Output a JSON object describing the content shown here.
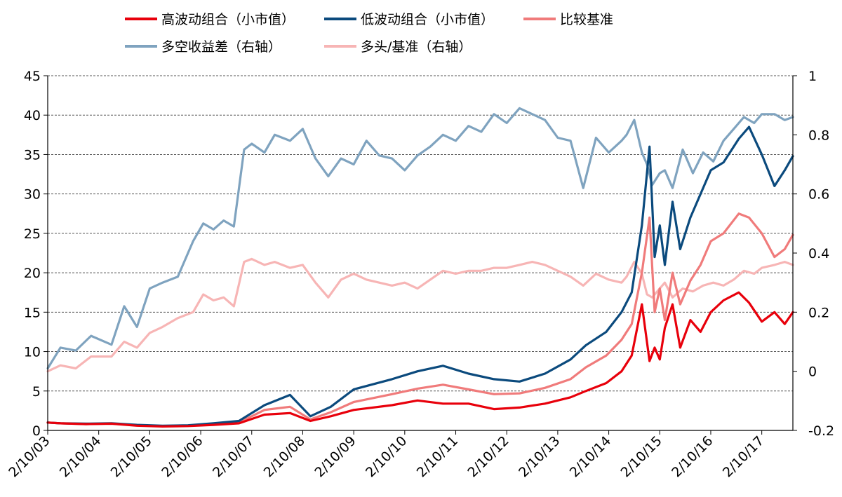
{
  "chart_data": {
    "type": "line",
    "title": "",
    "xlabel": "",
    "ylabel": "",
    "x_ticks": [
      "2/10/03",
      "2/10/04",
      "2/10/05",
      "2/10/06",
      "2/10/07",
      "2/10/08",
      "2/10/09",
      "2/10/10",
      "2/10/11",
      "2/10/12",
      "2/10/13",
      "2/10/14",
      "2/10/15",
      "2/10/16",
      "2/10/17"
    ],
    "x_range": [
      2003.75,
      2018.36
    ],
    "ylim_left": [
      0,
      45
    ],
    "ylim_right": [
      -0.2,
      1
    ],
    "yticks_left": [
      "0",
      "5",
      "10",
      "15",
      "20",
      "25",
      "30",
      "35",
      "40",
      "45"
    ],
    "yticks_right": [
      "-0.2",
      "0",
      "0.2",
      "0.4",
      "0.6",
      "0.8",
      "1"
    ],
    "grid": "horizontal dashed",
    "legend_position": "top",
    "legend": [
      {
        "label": "高波动组合（小市值）",
        "color": "#e8000b"
      },
      {
        "label": "低波动组合（小市值）",
        "color": "#0b4a7d"
      },
      {
        "label": "比较基准",
        "color": "#f07b7b"
      },
      {
        "label": "多空收益差（右轴）",
        "color": "#7fa3bf"
      },
      {
        "label": "多头/基准（右轴）",
        "color": "#f7b5b5"
      }
    ],
    "series": [
      {
        "name": "高波动组合（小市值）",
        "axis": "left",
        "color": "#e8000b",
        "x": [
          2003.75,
          2004.0,
          2004.5,
          2005.0,
          2005.5,
          2006.0,
          2006.5,
          2007.0,
          2007.5,
          2008.0,
          2008.5,
          2008.9,
          2009.3,
          2009.75,
          2010.5,
          2011.0,
          2011.5,
          2012.0,
          2012.5,
          2013.0,
          2013.5,
          2014.0,
          2014.3,
          2014.7,
          2015.0,
          2015.2,
          2015.4,
          2015.55,
          2015.65,
          2015.75,
          2015.85,
          2016.0,
          2016.15,
          2016.35,
          2016.55,
          2016.75,
          2017.0,
          2017.3,
          2017.5,
          2017.75,
          2018.0,
          2018.2,
          2018.36
        ],
        "values": [
          1.0,
          0.9,
          0.8,
          0.85,
          0.6,
          0.5,
          0.55,
          0.7,
          0.9,
          2.0,
          2.2,
          1.2,
          1.8,
          2.6,
          3.2,
          3.8,
          3.4,
          3.4,
          2.7,
          2.9,
          3.4,
          4.2,
          5.0,
          6.0,
          7.5,
          9.5,
          16,
          8.8,
          10.5,
          9.0,
          13,
          16,
          10.5,
          14,
          12.5,
          15,
          16.5,
          17.5,
          16.2,
          13.8,
          15.0,
          13.5,
          15.0
        ]
      },
      {
        "name": "低波动组合（小市值）",
        "axis": "left",
        "color": "#0b4a7d",
        "x": [
          2003.75,
          2004.0,
          2004.5,
          2005.0,
          2005.5,
          2006.0,
          2006.5,
          2007.0,
          2007.5,
          2008.0,
          2008.5,
          2008.9,
          2009.3,
          2009.75,
          2010.5,
          2011.0,
          2011.5,
          2012.0,
          2012.5,
          2013.0,
          2013.5,
          2014.0,
          2014.3,
          2014.7,
          2015.0,
          2015.2,
          2015.4,
          2015.55,
          2015.65,
          2015.75,
          2015.85,
          2016.0,
          2016.15,
          2016.35,
          2016.55,
          2016.75,
          2017.0,
          2017.3,
          2017.5,
          2017.75,
          2018.0,
          2018.2,
          2018.36
        ],
        "values": [
          1.0,
          0.9,
          0.85,
          0.9,
          0.7,
          0.6,
          0.65,
          0.9,
          1.2,
          3.2,
          4.5,
          1.8,
          3.0,
          5.2,
          6.5,
          7.5,
          8.2,
          7.2,
          6.5,
          6.2,
          7.2,
          9.0,
          10.8,
          12.5,
          15.0,
          17.5,
          26,
          36,
          22,
          26,
          21,
          29,
          23,
          27,
          30,
          33,
          34,
          37,
          38.5,
          35,
          31,
          33,
          34.8
        ]
      },
      {
        "name": "比较基准",
        "axis": "left",
        "color": "#f07b7b",
        "x": [
          2003.75,
          2004.0,
          2004.5,
          2005.0,
          2005.5,
          2006.0,
          2006.5,
          2007.0,
          2007.5,
          2008.0,
          2008.5,
          2008.9,
          2009.3,
          2009.75,
          2010.5,
          2011.0,
          2011.5,
          2012.0,
          2012.5,
          2013.0,
          2013.5,
          2014.0,
          2014.3,
          2014.7,
          2015.0,
          2015.2,
          2015.4,
          2015.55,
          2015.65,
          2015.75,
          2015.85,
          2016.0,
          2016.15,
          2016.35,
          2016.55,
          2016.75,
          2017.0,
          2017.3,
          2017.5,
          2017.75,
          2018.0,
          2018.2,
          2018.36
        ],
        "values": [
          1.0,
          0.9,
          0.8,
          0.85,
          0.65,
          0.55,
          0.6,
          0.8,
          1.0,
          2.6,
          3.0,
          1.4,
          2.3,
          3.6,
          4.6,
          5.3,
          5.8,
          5.2,
          4.6,
          4.7,
          5.4,
          6.5,
          8.0,
          9.5,
          11.5,
          13.5,
          20,
          27,
          15,
          18,
          14,
          20,
          16,
          19,
          21,
          24,
          25,
          27.5,
          27,
          25,
          22,
          23,
          24.8
        ]
      },
      {
        "name": "多空收益差（右轴）",
        "axis": "right",
        "color": "#7fa3bf",
        "x": [
          2003.75,
          2004.0,
          2004.3,
          2004.6,
          2005.0,
          2005.25,
          2005.5,
          2005.75,
          2006.0,
          2006.3,
          2006.6,
          2006.8,
          2007.0,
          2007.2,
          2007.4,
          2007.6,
          2007.75,
          2008.0,
          2008.2,
          2008.5,
          2008.75,
          2009.0,
          2009.25,
          2009.5,
          2009.75,
          2010.0,
          2010.25,
          2010.5,
          2010.75,
          2011.0,
          2011.25,
          2011.5,
          2011.75,
          2012.0,
          2012.25,
          2012.5,
          2012.75,
          2013.0,
          2013.25,
          2013.5,
          2013.75,
          2014.0,
          2014.25,
          2014.5,
          2014.75,
          2015.0,
          2015.1,
          2015.25,
          2015.4,
          2015.5,
          2015.6,
          2015.75,
          2015.85,
          2016.0,
          2016.2,
          2016.4,
          2016.6,
          2016.8,
          2017.0,
          2017.2,
          2017.4,
          2017.6,
          2017.75,
          2018.0,
          2018.2,
          2018.36
        ],
        "values": [
          0.01,
          0.08,
          0.07,
          0.12,
          0.09,
          0.22,
          0.15,
          0.28,
          0.3,
          0.32,
          0.44,
          0.5,
          0.48,
          0.51,
          0.49,
          0.75,
          0.77,
          0.74,
          0.8,
          0.78,
          0.82,
          0.72,
          0.66,
          0.72,
          0.7,
          0.78,
          0.73,
          0.72,
          0.68,
          0.73,
          0.76,
          0.8,
          0.78,
          0.83,
          0.81,
          0.87,
          0.84,
          0.89,
          0.87,
          0.85,
          0.79,
          0.78,
          0.62,
          0.79,
          0.74,
          0.78,
          0.8,
          0.85,
          0.74,
          0.7,
          0.63,
          0.67,
          0.68,
          0.62,
          0.75,
          0.67,
          0.74,
          0.71,
          0.78,
          0.82,
          0.86,
          0.84,
          0.87,
          0.87,
          0.85,
          0.86
        ]
      },
      {
        "name": "多头/基准（右轴）",
        "axis": "right",
        "color": "#f7b5b5",
        "x": [
          2003.75,
          2004.0,
          2004.3,
          2004.6,
          2005.0,
          2005.25,
          2005.5,
          2005.75,
          2006.0,
          2006.3,
          2006.6,
          2006.8,
          2007.0,
          2007.2,
          2007.4,
          2007.6,
          2007.75,
          2008.0,
          2008.2,
          2008.5,
          2008.75,
          2009.0,
          2009.25,
          2009.5,
          2009.75,
          2010.0,
          2010.25,
          2010.5,
          2010.75,
          2011.0,
          2011.25,
          2011.5,
          2011.75,
          2012.0,
          2012.25,
          2012.5,
          2012.75,
          2013.0,
          2013.25,
          2013.5,
          2013.75,
          2014.0,
          2014.25,
          2014.5,
          2014.75,
          2015.0,
          2015.1,
          2015.25,
          2015.4,
          2015.5,
          2015.6,
          2015.75,
          2015.85,
          2016.0,
          2016.2,
          2016.4,
          2016.6,
          2016.8,
          2017.0,
          2017.2,
          2017.4,
          2017.6,
          2017.75,
          2018.0,
          2018.2,
          2018.36
        ],
        "values": [
          0.0,
          0.02,
          0.01,
          0.05,
          0.05,
          0.1,
          0.08,
          0.13,
          0.15,
          0.18,
          0.2,
          0.26,
          0.24,
          0.25,
          0.22,
          0.37,
          0.38,
          0.36,
          0.37,
          0.35,
          0.36,
          0.3,
          0.25,
          0.31,
          0.33,
          0.31,
          0.3,
          0.29,
          0.3,
          0.28,
          0.31,
          0.34,
          0.33,
          0.34,
          0.34,
          0.35,
          0.35,
          0.36,
          0.37,
          0.36,
          0.34,
          0.32,
          0.29,
          0.33,
          0.31,
          0.3,
          0.32,
          0.37,
          0.33,
          0.26,
          0.25,
          0.28,
          0.3,
          0.25,
          0.28,
          0.27,
          0.29,
          0.3,
          0.29,
          0.31,
          0.34,
          0.33,
          0.35,
          0.36,
          0.37,
          0.36
        ]
      }
    ]
  }
}
